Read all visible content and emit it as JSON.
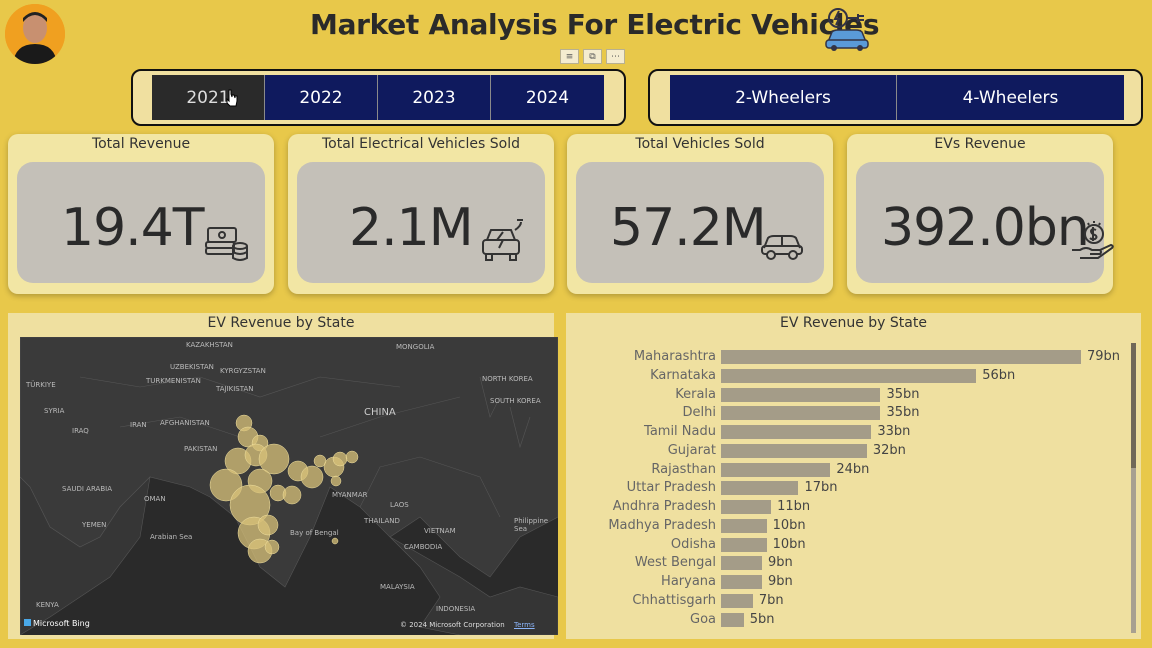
{
  "header": {
    "title": "Market Analysis For Electric Vehicles"
  },
  "year_slicer": {
    "items": [
      {
        "label": "2021",
        "selected": true
      },
      {
        "label": "2022",
        "selected": false
      },
      {
        "label": "2023",
        "selected": false
      },
      {
        "label": "2024",
        "selected": false
      }
    ]
  },
  "vehicle_slicer": {
    "items": [
      {
        "label": "2-Wheelers"
      },
      {
        "label": "4-Wheelers"
      }
    ]
  },
  "kpis": [
    {
      "title": "Total Revenue",
      "value": "19.4T",
      "icon": "money-stack-icon"
    },
    {
      "title": "Total Electrical Vehicles Sold",
      "value": "2.1M",
      "icon": "ev-charging-car-icon"
    },
    {
      "title": "Total Vehicles Sold",
      "value": "57.2M",
      "icon": "car-icon"
    },
    {
      "title": "EVs Revenue",
      "value": "392.0bn",
      "icon": "hand-dollar-icon"
    }
  ],
  "map_panel": {
    "title": "EV Revenue by State",
    "labels": [
      "TÜRKIYE",
      "SYRIA",
      "IRAQ",
      "IRAN",
      "AFGHANISTAN",
      "PAKISTAN",
      "SAUDI ARABIA",
      "YEMEN",
      "TURKMENISTAN",
      "UZBEKISTAN",
      "KAZAKHSTAN",
      "KYRGYZSTAN",
      "TAJIKISTAN",
      "CHINA",
      "MONGOLIA",
      "NORTH KOREA",
      "SOUTH KOREA",
      "MYANMAR",
      "THAILAND",
      "LAOS",
      "VIETNAM",
      "CAMBODIA",
      "MALAYSIA",
      "INDONESIA",
      "KENYA",
      "OMAN",
      "Arabian Sea",
      "Bay of Bengal",
      "Philippine Sea"
    ],
    "attribution": "Microsoft Bing",
    "copyright": "© 2024 Microsoft Corporation",
    "terms": "Terms"
  },
  "bar_panel": {
    "title": "EV Revenue by State"
  },
  "chart_data": {
    "type": "bar",
    "orientation": "horizontal",
    "title": "EV Revenue by State",
    "categories": [
      "Maharashtra",
      "Karnataka",
      "Kerala",
      "Delhi",
      "Tamil Nadu",
      "Gujarat",
      "Rajasthan",
      "Uttar Pradesh",
      "Andhra Pradesh",
      "Madhya Pradesh",
      "Odisha",
      "West Bengal",
      "Haryana",
      "Chhattisgarh",
      "Goa"
    ],
    "values": [
      79,
      56,
      35,
      35,
      33,
      32,
      24,
      17,
      11,
      10,
      10,
      9,
      9,
      7,
      5
    ],
    "value_labels": [
      "79bn",
      "56bn",
      "35bn",
      "35bn",
      "33bn",
      "32bn",
      "24bn",
      "17bn",
      "11bn",
      "10bn",
      "10bn",
      "9bn",
      "9bn",
      "7bn",
      "5bn"
    ],
    "unit": "bn",
    "bar_color": "#a49c88"
  },
  "colors": {
    "background": "#e8c84a",
    "card": "#f2e6a4",
    "card_inner": "#c4c0b8",
    "slicer_button": "#0f1a5e",
    "slicer_selected": "#2a2a2a",
    "map_bubble": "#d8c27a"
  }
}
